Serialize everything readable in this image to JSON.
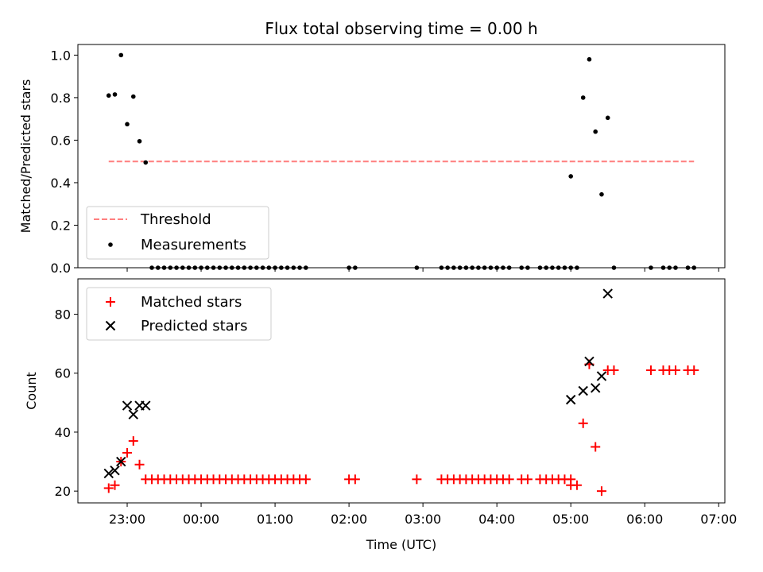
{
  "chart_data": [
    {
      "type": "scatter",
      "title": "Flux total observing time = 0.00 h",
      "xlabel": "",
      "ylabel": "Matched/Predicted stars",
      "ylim": [
        0,
        1.05
      ],
      "yticks": [
        "0.0",
        "0.2",
        "0.4",
        "0.6",
        "0.8",
        "1.0"
      ],
      "legend_position": "lower-left",
      "threshold": {
        "name": "Threshold",
        "value": 0.5,
        "x_from": "22:45",
        "x_to": "06:40",
        "color": "#ff7f7f",
        "style": "dashed"
      },
      "series": [
        {
          "name": "Measurements",
          "color": "#000000",
          "marker": "dot",
          "x": [
            "22:45",
            "22:50",
            "22:55",
            "23:00",
            "23:05",
            "23:10",
            "23:15",
            "23:20",
            "23:25",
            "23:30",
            "23:35",
            "23:40",
            "23:45",
            "23:50",
            "23:55",
            "00:00",
            "00:05",
            "00:10",
            "00:15",
            "00:20",
            "00:25",
            "00:30",
            "00:35",
            "00:40",
            "00:45",
            "00:50",
            "00:55",
            "01:00",
            "01:05",
            "01:10",
            "01:15",
            "01:20",
            "01:25",
            "02:00",
            "02:05",
            "02:55",
            "03:15",
            "03:20",
            "03:25",
            "03:30",
            "03:35",
            "03:40",
            "03:45",
            "03:50",
            "03:55",
            "04:00",
            "04:05",
            "04:10",
            "04:20",
            "04:25",
            "04:35",
            "04:40",
            "04:45",
            "04:50",
            "04:55",
            "05:00",
            "05:00",
            "05:05",
            "05:10",
            "05:15",
            "05:20",
            "05:25",
            "05:30",
            "05:35",
            "06:05",
            "06:15",
            "06:20",
            "06:25",
            "06:35",
            "06:40"
          ],
          "y": [
            0.81,
            0.815,
            1.0,
            0.675,
            0.805,
            0.595,
            0.495,
            0,
            0,
            0,
            0,
            0,
            0,
            0,
            0,
            0,
            0,
            0,
            0,
            0,
            0,
            0,
            0,
            0,
            0,
            0,
            0,
            0,
            0,
            0,
            0,
            0,
            0,
            0,
            0,
            0,
            0,
            0,
            0,
            0,
            0,
            0,
            0,
            0,
            0,
            0,
            0,
            0,
            0,
            0,
            0,
            0,
            0,
            0,
            0,
            0,
            0.43,
            0,
            0.8,
            0.98,
            0.64,
            0.345,
            0.705,
            0,
            0,
            0,
            0,
            0,
            0,
            0
          ]
        }
      ]
    },
    {
      "type": "scatter",
      "title": "",
      "xlabel": "Time (UTC)",
      "ylabel": "Count",
      "ylim": [
        16,
        92
      ],
      "yticks": [
        "20",
        "40",
        "60",
        "80"
      ],
      "xlim": [
        "22:20",
        "07:05"
      ],
      "xticks": [
        "23:00",
        "00:00",
        "01:00",
        "02:00",
        "03:00",
        "04:00",
        "05:00",
        "06:00",
        "07:00"
      ],
      "legend_position": "upper-left",
      "series": [
        {
          "name": "Matched stars",
          "color": "#ff0000",
          "marker": "plus",
          "x": [
            "22:45",
            "22:50",
            "22:55",
            "23:00",
            "23:05",
            "23:10",
            "23:15",
            "23:20",
            "23:25",
            "23:30",
            "23:35",
            "23:40",
            "23:45",
            "23:50",
            "23:55",
            "00:00",
            "00:05",
            "00:10",
            "00:15",
            "00:20",
            "00:25",
            "00:30",
            "00:35",
            "00:40",
            "00:45",
            "00:50",
            "00:55",
            "01:00",
            "01:05",
            "01:10",
            "01:15",
            "01:20",
            "01:25",
            "02:00",
            "02:05",
            "02:55",
            "03:15",
            "03:20",
            "03:25",
            "03:30",
            "03:35",
            "03:40",
            "03:45",
            "03:50",
            "03:55",
            "04:00",
            "04:05",
            "04:10",
            "04:20",
            "04:25",
            "04:35",
            "04:40",
            "04:45",
            "04:50",
            "04:55",
            "05:00",
            "05:00",
            "05:05",
            "05:10",
            "05:15",
            "05:20",
            "05:25",
            "05:30",
            "05:35",
            "06:05",
            "06:15",
            "06:20",
            "06:25",
            "06:35",
            "06:40"
          ],
          "y": [
            21,
            22,
            30,
            33,
            37,
            29,
            24,
            24,
            24,
            24,
            24,
            24,
            24,
            24,
            24,
            24,
            24,
            24,
            24,
            24,
            24,
            24,
            24,
            24,
            24,
            24,
            24,
            24,
            24,
            24,
            24,
            24,
            24,
            24,
            24,
            24,
            24,
            24,
            24,
            24,
            24,
            24,
            24,
            24,
            24,
            24,
            24,
            24,
            24,
            24,
            24,
            24,
            24,
            24,
            24,
            24,
            22,
            22,
            43,
            63,
            35,
            20,
            61,
            61,
            61,
            61,
            61,
            61,
            61,
            61
          ]
        },
        {
          "name": "Predicted stars",
          "color": "#000000",
          "marker": "x",
          "x": [
            "22:45",
            "22:50",
            "22:55",
            "23:00",
            "23:05",
            "23:10",
            "23:15",
            "05:00",
            "05:10",
            "05:15",
            "05:20",
            "05:25",
            "05:30"
          ],
          "y": [
            26,
            27,
            30,
            49,
            46,
            49,
            49,
            51,
            54,
            64,
            55,
            59,
            87
          ]
        }
      ]
    }
  ]
}
